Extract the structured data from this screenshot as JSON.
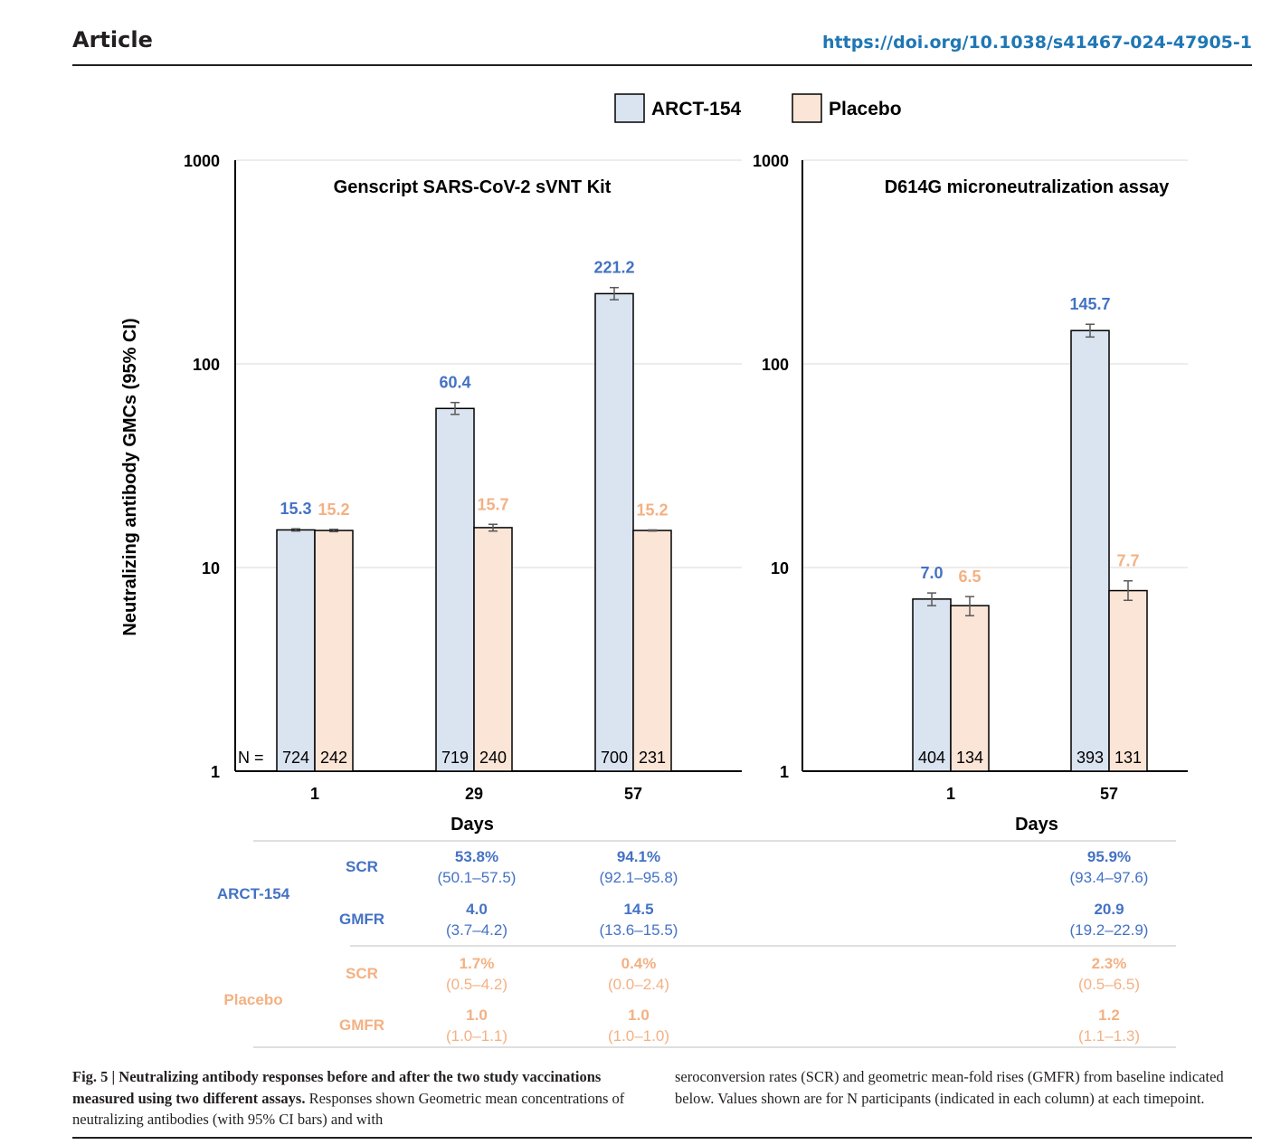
{
  "header": {
    "section": "Article",
    "doi": "https://doi.org/10.1038/s41467-024-47905-1"
  },
  "colors": {
    "arct": "#4472c4",
    "placebo": "#f4b183",
    "arct_fill": "#dae3f0",
    "placebo_fill": "#fbe5d6"
  },
  "chart_data": [
    {
      "type": "bar",
      "title": "Genscript SARS-CoV-2 sVNT Kit",
      "xlabel": "Days",
      "ylabel": "Neutralizing antibody GMCs (95% CI)",
      "yscale": "log",
      "ylim": [
        1,
        1000
      ],
      "yticks": [
        "1",
        "10",
        "100",
        "1000"
      ],
      "legend": "top-center",
      "categories": [
        "1",
        "29",
        "57"
      ],
      "n_label": "N =",
      "series": [
        {
          "name": "ARCT-154",
          "values": [
            15.3,
            60.4,
            221.2
          ],
          "labels": [
            "15.3",
            "60.4",
            "221.2"
          ],
          "ci_low": [
            15.1,
            56.5,
            206.5
          ],
          "ci_high": [
            15.5,
            64.6,
            236.9
          ],
          "n": [
            "724",
            "719",
            "700"
          ]
        },
        {
          "name": "Placebo",
          "values": [
            15.2,
            15.7,
            15.2
          ],
          "labels": [
            "15.2",
            "15.7",
            "15.2"
          ],
          "ci_low": [
            15.0,
            15.1,
            15.1
          ],
          "ci_high": [
            15.4,
            16.3,
            15.3
          ],
          "n": [
            "242",
            "240",
            "231"
          ]
        }
      ]
    },
    {
      "type": "bar",
      "title": "D614G microneutralization assay",
      "xlabel": "Days",
      "yscale": "log",
      "ylim": [
        1,
        1000
      ],
      "yticks": [
        "1",
        "10",
        "100",
        "1000"
      ],
      "categories": [
        "1",
        "57"
      ],
      "series": [
        {
          "name": "ARCT-154",
          "values": [
            7.0,
            145.7
          ],
          "labels": [
            "7.0",
            "145.7"
          ],
          "ci_low": [
            6.5,
            135.5
          ],
          "ci_high": [
            7.5,
            156.5
          ],
          "n": [
            "404",
            "393"
          ]
        },
        {
          "name": "Placebo",
          "values": [
            6.5,
            7.7
          ],
          "labels": [
            "6.5",
            "7.7"
          ],
          "ci_low": [
            5.8,
            6.9
          ],
          "ci_high": [
            7.2,
            8.6
          ],
          "n": [
            "134",
            "131"
          ]
        }
      ]
    }
  ],
  "table": {
    "groups": [
      {
        "name": "ARCT-154",
        "color": "#4472c4",
        "rows": [
          {
            "metric": "SCR",
            "cells": [
              [
                "53.8%",
                "(50.1–57.5)"
              ],
              [
                "94.1%",
                "(92.1–95.8)"
              ],
              [
                "95.9%",
                "(93.4–97.6)"
              ]
            ]
          },
          {
            "metric": "GMFR",
            "cells": [
              [
                "4.0",
                "(3.7–4.2)"
              ],
              [
                "14.5",
                "(13.6–15.5)"
              ],
              [
                "20.9",
                "(19.2–22.9)"
              ]
            ]
          }
        ]
      },
      {
        "name": "Placebo",
        "color": "#f4b183",
        "rows": [
          {
            "metric": "SCR",
            "cells": [
              [
                "1.7%",
                "(0.5–4.2)"
              ],
              [
                "0.4%",
                "(0.0–2.4)"
              ],
              [
                "2.3%",
                "(0.5–6.5)"
              ]
            ]
          },
          {
            "metric": "GMFR",
            "cells": [
              [
                "1.0",
                "(1.0–1.1)"
              ],
              [
                "1.0",
                "(1.0–1.0)"
              ],
              [
                "1.2",
                "(1.1–1.3)"
              ]
            ]
          }
        ]
      }
    ]
  },
  "caption": {
    "label": "Fig. 5 | Neutralizing antibody responses before and after the two study vaccinations measured using two different assays.",
    "text_left": "Responses shown Geometric mean concentrations of neutralizing antibodies (with 95% CI bars) and with",
    "text_right": "seroconversion rates (SCR) and geometric mean-fold rises (GMFR) from baseline indicated below. Values shown are for N participants (indicated in each column) at each timepoint."
  }
}
